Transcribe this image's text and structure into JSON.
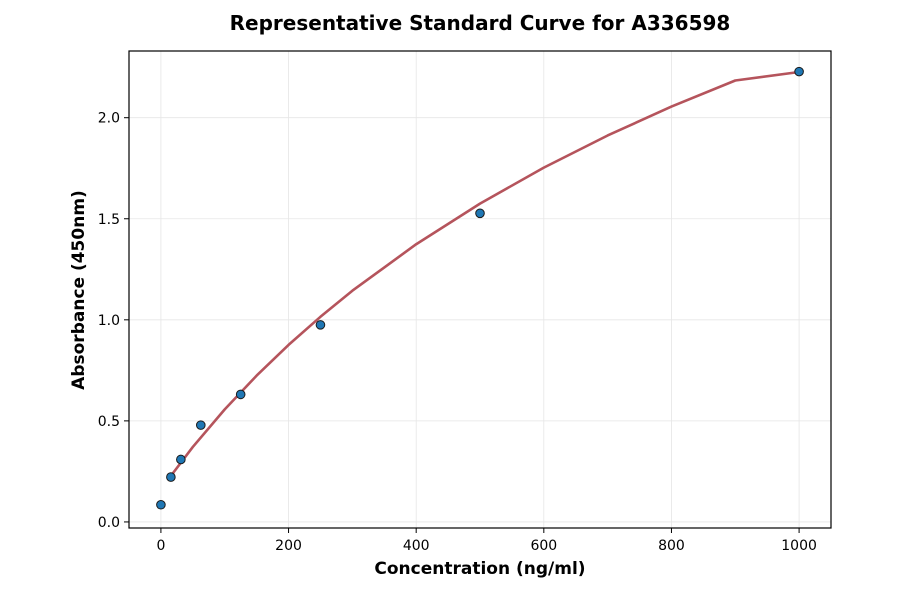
{
  "chart_data": {
    "type": "scatter",
    "title": "Representative Standard Curve for A336598",
    "xlabel": "Concentration (ng/ml)",
    "ylabel": "Absorbance (450nm)",
    "xlim": [
      -50,
      1050
    ],
    "ylim": [
      -0.03,
      2.33
    ],
    "xticks": [
      0,
      200,
      400,
      600,
      800,
      1000
    ],
    "yticks": [
      0.0,
      0.5,
      1.0,
      1.5,
      2.0
    ],
    "xtick_labels": [
      "0",
      "200",
      "400",
      "600",
      "800",
      "1000"
    ],
    "ytick_labels": [
      "0.0",
      "0.5",
      "1.0",
      "1.5",
      "2.0"
    ],
    "grid": true,
    "series": [
      {
        "kind": "points",
        "x": [
          0,
          15.625,
          31.25,
          62.5,
          125,
          250,
          500,
          1000
        ],
        "y": [
          0.085,
          0.222,
          0.309,
          0.479,
          0.631,
          0.975,
          1.527,
          2.228
        ],
        "color": "#1f77b4",
        "edge_color": "#1a1a1a"
      },
      {
        "kind": "fit-curve",
        "x": [
          15.625,
          50,
          100,
          150,
          200,
          250,
          300,
          400,
          500,
          600,
          700,
          800,
          900,
          1000
        ],
        "y": [
          0.228,
          0.371,
          0.557,
          0.724,
          0.876,
          1.015,
          1.144,
          1.374,
          1.575,
          1.753,
          1.912,
          2.055,
          2.184,
          2.226
        ],
        "color": "#b5545c"
      }
    ]
  }
}
